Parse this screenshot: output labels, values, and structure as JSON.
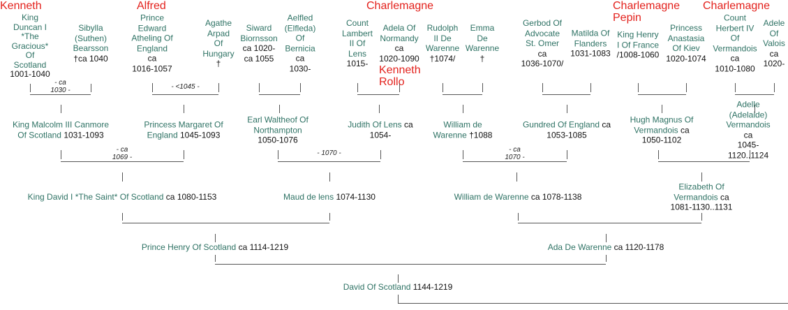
{
  "colors": {
    "name": "#2e7264",
    "dates": "#111111",
    "ancestor_label": "#e3211c",
    "lines": "#555555"
  },
  "ancestor_labels": [
    {
      "id": "a1",
      "text": "Kenneth"
    },
    {
      "id": "a2",
      "text": "Alfred"
    },
    {
      "id": "a3",
      "text": "Charlemagne"
    },
    {
      "id": "a4",
      "text": "Kenneth\nRollo"
    },
    {
      "id": "a5",
      "text": "Charlemagne\nPepin"
    },
    {
      "id": "a6",
      "text": "Charlemagne"
    }
  ],
  "persons": [
    {
      "id": "duncan",
      "name": "King\nDuncan I\n*The\nGracious*\nOf\nScotland",
      "dates": "1001-1040"
    },
    {
      "id": "sibylla",
      "name": "Sibylla\n(Suthen)\nBearsson",
      "dates": "†ca 1040"
    },
    {
      "id": "edward",
      "name": "Prince\nEdward\nAtheling Of\nEngland",
      "dates": "ca\n1016-1057"
    },
    {
      "id": "agathe",
      "name": "Agathe\nArpad\nOf\nHungary",
      "dates": "†"
    },
    {
      "id": "siward",
      "name": "Siward\nBiornsson",
      "dates": "ca 1020-\nca 1055"
    },
    {
      "id": "aelfled",
      "name": "Aelfled\n(Elfleda)\nOf\nBernicia",
      "dates": "ca\n1030-"
    },
    {
      "id": "lambert",
      "name": "Count\nLambert\nII Of\nLens",
      "dates": "1015-"
    },
    {
      "id": "adela",
      "name": "Adela Of\nNormandy",
      "dates": "ca\n1020-1090"
    },
    {
      "id": "rudolph",
      "name": "Rudolph\nII De\nWarenne",
      "dates": "†1074/"
    },
    {
      "id": "emma",
      "name": "Emma\nDe\nWarenne",
      "dates": "†"
    },
    {
      "id": "gerbod",
      "name": "Gerbod Of\nAdvocate\nSt. Omer",
      "dates": "ca\n1036-1070/"
    },
    {
      "id": "matilda",
      "name": "Matilda Of\nFlanders",
      "dates": "1031-1083"
    },
    {
      "id": "henry1",
      "name": "King Henry\nI Of France",
      "dates": "/1008-1060"
    },
    {
      "id": "anastasia",
      "name": "Princess\nAnastasia\nOf Kiev",
      "dates": "1020-1074"
    },
    {
      "id": "herbert",
      "name": "Count\nHerbert IV\nOf\nVermandois",
      "dates": "ca\n1010-1080"
    },
    {
      "id": "adele",
      "name": "Adele\nOf\nValois",
      "dates": "ca\n1020-"
    },
    {
      "id": "malcolm",
      "name": "King Malcolm III Canmore\nOf Scotland",
      "dates": "1031-1093"
    },
    {
      "id": "margaret",
      "name": "Princess Margaret Of\nEngland",
      "dates": "1045-1093"
    },
    {
      "id": "waltheof",
      "name": "Earl Waltheof Of\nNorthampton",
      "dates": "1050-1076"
    },
    {
      "id": "judith",
      "name": "Judith Of Lens",
      "dates": "ca\n1054-"
    },
    {
      "id": "william1",
      "name": "William de\nWarenne",
      "dates": "†1088"
    },
    {
      "id": "gundred",
      "name": "Gundred Of England",
      "dates": "ca\n1053-1085"
    },
    {
      "id": "hugh",
      "name": "Hugh Magnus Of\nVermandois",
      "dates": "ca\n1050-1102"
    },
    {
      "id": "adelle",
      "name": "Adelle (Adelaide)\nVermandois",
      "dates": "ca\n1045-1120..1124"
    },
    {
      "id": "david1",
      "name": "King David I *The Saint* Of Scotland",
      "dates": "ca 1080-1153"
    },
    {
      "id": "maud",
      "name": "Maud de lens",
      "dates": "1074-1130"
    },
    {
      "id": "william2",
      "name": "William de Warenne",
      "dates": "ca 1078-1138"
    },
    {
      "id": "elizabeth",
      "name": "Elizabeth Of Vermandois",
      "dates": "ca\n1081-1130..1131"
    },
    {
      "id": "henry2",
      "name": "Prince Henry Of Scotland",
      "dates": "ca 1114-1219"
    },
    {
      "id": "ada",
      "name": "Ada De Warenne",
      "dates": "ca 1120-1178"
    },
    {
      "id": "david2",
      "name": "David Of Scotland",
      "dates": "1144-1219"
    }
  ],
  "marriages": [
    {
      "id": "m1",
      "label": "- ca\n1030 -"
    },
    {
      "id": "m2",
      "label": "- <1045 -"
    },
    {
      "id": "m3",
      "label": ""
    },
    {
      "id": "m4",
      "label": ""
    },
    {
      "id": "m5",
      "label": ""
    },
    {
      "id": "m6",
      "label": ""
    },
    {
      "id": "m7",
      "label": ""
    },
    {
      "id": "m8",
      "label": ""
    },
    {
      "id": "m9",
      "label": "- ca\n1069 -"
    },
    {
      "id": "m10",
      "label": "- 1070 -"
    },
    {
      "id": "m11",
      "label": "- ca\n1070 -"
    },
    {
      "id": "m12",
      "label": ""
    },
    {
      "id": "m13",
      "label": ""
    },
    {
      "id": "m14",
      "label": ""
    },
    {
      "id": "m15",
      "label": ""
    }
  ]
}
